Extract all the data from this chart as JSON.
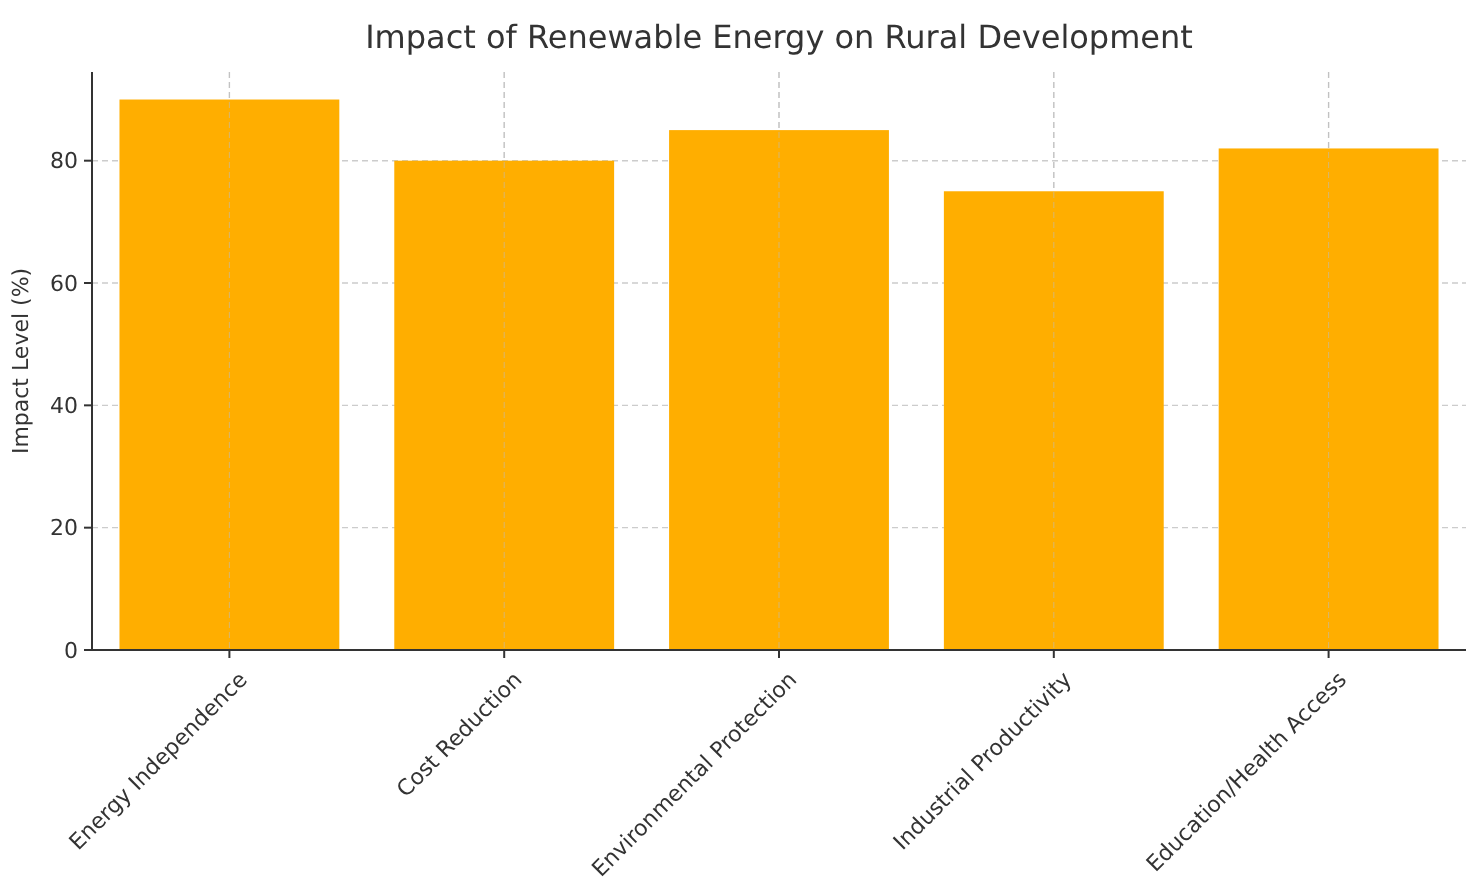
{
  "chart_data": {
    "type": "bar",
    "title": "Impact of Renewable Energy on Rural Development",
    "ylabel": "Impact Level (%)",
    "categories": [
      "Energy Independence",
      "Cost Reduction",
      "Environmental Protection",
      "Industrial Productivity",
      "Education/Health Access"
    ],
    "values": [
      90,
      80,
      85,
      75,
      82
    ],
    "color": "#ffae00",
    "ylim": [
      0,
      94.5
    ],
    "yticks": [
      0,
      20,
      40,
      60,
      80
    ],
    "grid": true
  }
}
